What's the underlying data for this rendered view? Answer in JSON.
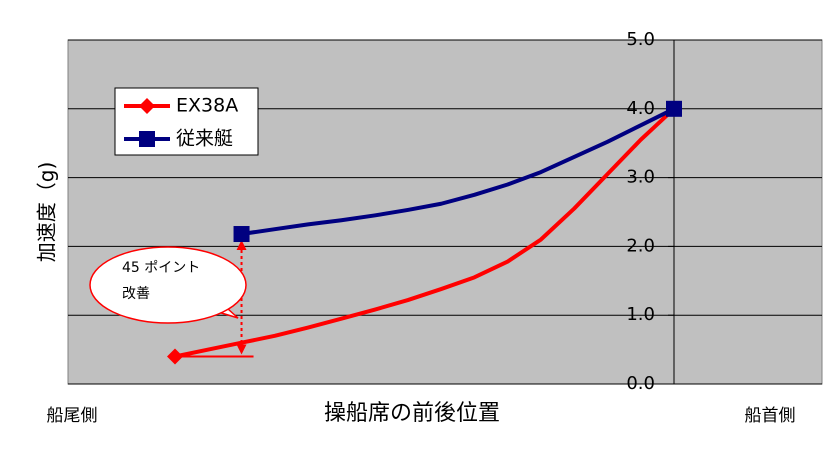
{
  "chart_data": {
    "type": "line",
    "y_label": "加速度（g)",
    "x_label": "操船席の前後位置",
    "x_left_label": "船尾側",
    "x_right_label": "船首側",
    "annotation": [
      "45 ポイント",
      "改善"
    ],
    "categories": [
      null,
      null,
      null,
      null,
      null,
      null,
      null,
      null,
      null,
      null,
      null,
      null,
      null,
      null,
      null,
      null
    ],
    "series": [
      {
        "name": "EX38A",
        "color": "#ff0000",
        "marker": "diamond",
        "values": [
          0.4,
          0.5,
          0.6,
          0.7,
          0.82,
          0.95,
          1.08,
          1.22,
          1.38,
          1.55,
          1.78,
          2.1,
          2.55,
          3.05,
          3.55,
          4.0
        ]
      },
      {
        "name": "従来艇",
        "color": "#000080",
        "marker": "square",
        "values": [
          null,
          null,
          2.18,
          2.25,
          2.32,
          2.38,
          2.45,
          2.53,
          2.62,
          2.75,
          2.9,
          3.08,
          3.3,
          3.52,
          3.76,
          4.0
        ]
      }
    ],
    "ylim": [
      0,
      5
    ],
    "yticks": [
      {
        "value": 0,
        "label": "0.0"
      },
      {
        "value": 1,
        "label": "1.0"
      },
      {
        "value": 2,
        "label": "2.0"
      },
      {
        "value": 3,
        "label": "3.0"
      },
      {
        "value": 4,
        "label": "4.0"
      },
      {
        "value": 5,
        "label": "5.0"
      }
    ],
    "grid": true,
    "legend": "upper left"
  }
}
